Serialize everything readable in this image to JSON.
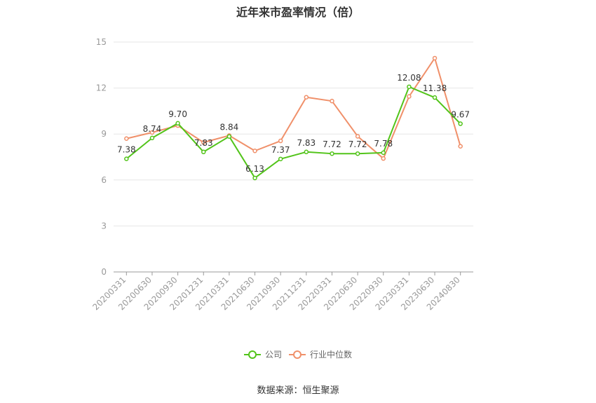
{
  "chart_data": {
    "type": "line",
    "title": "近年来市盈率情况（倍）",
    "categories": [
      "20200331",
      "20200630",
      "20200930",
      "20201231",
      "20210331",
      "20210630",
      "20210930",
      "20211231",
      "20220331",
      "20220630",
      "20220930",
      "20230331",
      "20230630",
      "20240830"
    ],
    "series": [
      {
        "name": "公司",
        "color": "#52c41a",
        "values": [
          7.38,
          8.74,
          9.7,
          7.83,
          8.84,
          6.13,
          7.37,
          7.83,
          7.72,
          7.72,
          7.78,
          12.08,
          11.38,
          9.67
        ],
        "labels": [
          "7.38",
          "8.74",
          "9.70",
          "7.83",
          "8.84",
          "6.13",
          "7.37",
          "7.83",
          "7.72",
          "7.72",
          "7.78",
          "12.08",
          "11.38",
          "9.67"
        ]
      },
      {
        "name": "行业中位数",
        "color": "#f0906a",
        "values": [
          8.7,
          9.1,
          9.55,
          8.45,
          8.9,
          7.9,
          8.55,
          11.4,
          11.15,
          8.85,
          7.4,
          11.45,
          13.95,
          8.2
        ]
      }
    ],
    "ylim": [
      0,
      15
    ],
    "yticks": [
      0,
      3,
      6,
      9,
      12,
      15
    ],
    "grid": true,
    "legend_position": "bottom-center"
  },
  "source_text": "数据来源：恒生聚源"
}
